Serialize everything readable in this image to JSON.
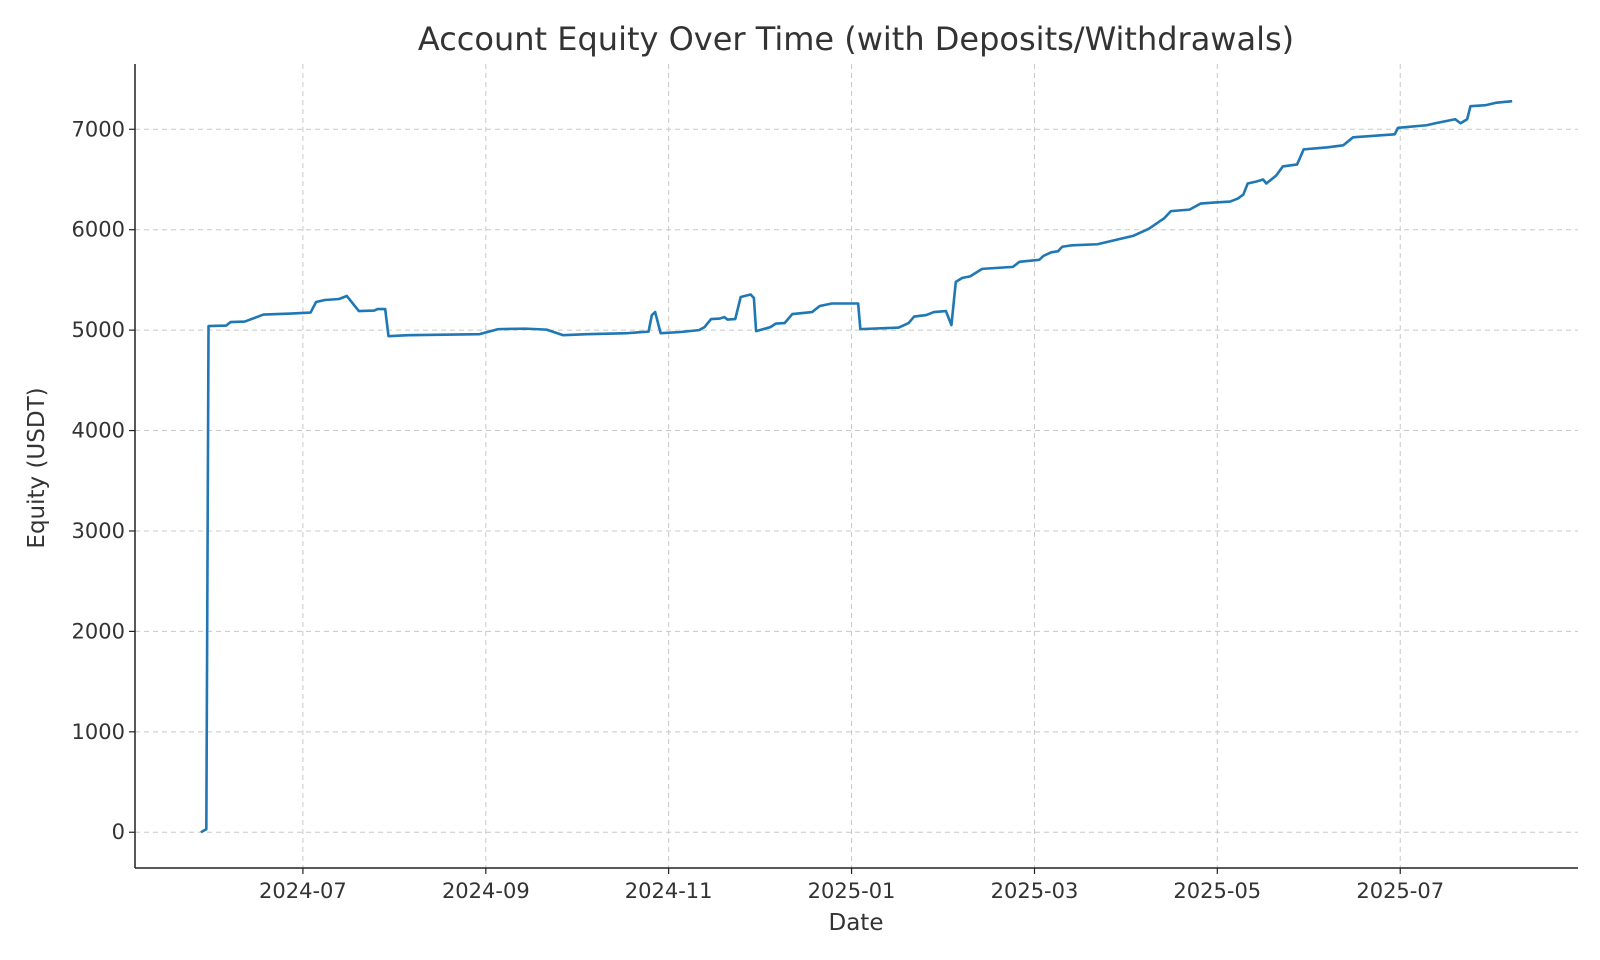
{
  "chart_data": {
    "type": "line",
    "title": "Account Equity Over Time (with Deposits/Withdrawals)",
    "x_label": "Date",
    "y_label": "Equity (USDT)",
    "xlim": [
      2024.347,
      2025.662
    ],
    "ylim": [
      -356,
      7650
    ],
    "xticks": [
      {
        "value": 2024.5,
        "label": "2024-07"
      },
      {
        "value": 2024.6667,
        "label": "2024-09"
      },
      {
        "value": 2024.8333,
        "label": "2024-11"
      },
      {
        "value": 2025.0,
        "label": "2025-01"
      },
      {
        "value": 2025.1667,
        "label": "2025-03"
      },
      {
        "value": 2025.3333,
        "label": "2025-05"
      },
      {
        "value": 2025.5,
        "label": "2025-07"
      }
    ],
    "yticks": [
      0,
      1000,
      2000,
      3000,
      4000,
      5000,
      6000,
      7000
    ],
    "grid": true,
    "x": [
      2024.407,
      2024.412,
      2024.414,
      2024.43,
      2024.434,
      2024.447,
      2024.464,
      2024.489,
      2024.507,
      2024.512,
      2024.52,
      2024.533,
      2024.54,
      2024.551,
      2024.565,
      2024.568,
      2024.575,
      2024.578,
      2024.596,
      2024.661,
      2024.678,
      2024.703,
      2024.722,
      2024.737,
      2024.759,
      2024.796,
      2024.815,
      2024.818,
      2024.821,
      2024.826,
      2024.843,
      2024.861,
      2024.866,
      2024.872,
      2024.88,
      2024.884,
      2024.887,
      2024.894,
      2024.899,
      2024.908,
      2024.911,
      2024.913,
      2024.926,
      2024.931,
      2024.939,
      2024.946,
      2024.964,
      2024.971,
      2024.982,
      2025.006,
      2025.008,
      2025.043,
      2025.052,
      2025.057,
      2025.068,
      2025.075,
      2025.086,
      2025.091,
      2025.095,
      2025.101,
      2025.108,
      2025.119,
      2025.147,
      2025.153,
      2025.171,
      2025.175,
      2025.182,
      2025.188,
      2025.192,
      2025.201,
      2025.224,
      2025.257,
      2025.271,
      2025.285,
      2025.291,
      2025.308,
      2025.318,
      2025.33,
      2025.345,
      2025.352,
      2025.357,
      2025.361,
      2025.369,
      2025.375,
      2025.378,
      2025.387,
      2025.393,
      2025.406,
      2025.412,
      2025.434,
      2025.448,
      2025.457,
      2025.495,
      2025.498,
      2025.524,
      2025.532,
      2025.55,
      2025.555,
      2025.561,
      2025.564,
      2025.578,
      2025.588,
      2025.602
    ],
    "series": [
      {
        "name": "Equity",
        "color": "#1f77b4",
        "values": [
          0,
          30,
          5040,
          5045,
          5080,
          5085,
          5155,
          5165,
          5175,
          5280,
          5300,
          5310,
          5340,
          5190,
          5195,
          5210,
          5210,
          4940,
          4950,
          4960,
          5010,
          5015,
          5005,
          4950,
          4960,
          4970,
          4985,
          5150,
          5180,
          4970,
          4980,
          5000,
          5030,
          5110,
          5115,
          5130,
          5105,
          5110,
          5330,
          5355,
          5320,
          4990,
          5030,
          5065,
          5070,
          5160,
          5180,
          5240,
          5265,
          5265,
          5010,
          5025,
          5070,
          5135,
          5150,
          5180,
          5190,
          5050,
          5480,
          5520,
          5535,
          5610,
          5630,
          5680,
          5700,
          5740,
          5775,
          5785,
          5830,
          5845,
          5855,
          5940,
          6010,
          6115,
          6185,
          6200,
          6260,
          6270,
          6280,
          6310,
          6350,
          6460,
          6480,
          6500,
          6460,
          6540,
          6630,
          6650,
          6800,
          6820,
          6840,
          6920,
          6950,
          7015,
          7040,
          7060,
          7100,
          7060,
          7100,
          7230,
          7240,
          7265,
          7280
        ]
      }
    ]
  }
}
